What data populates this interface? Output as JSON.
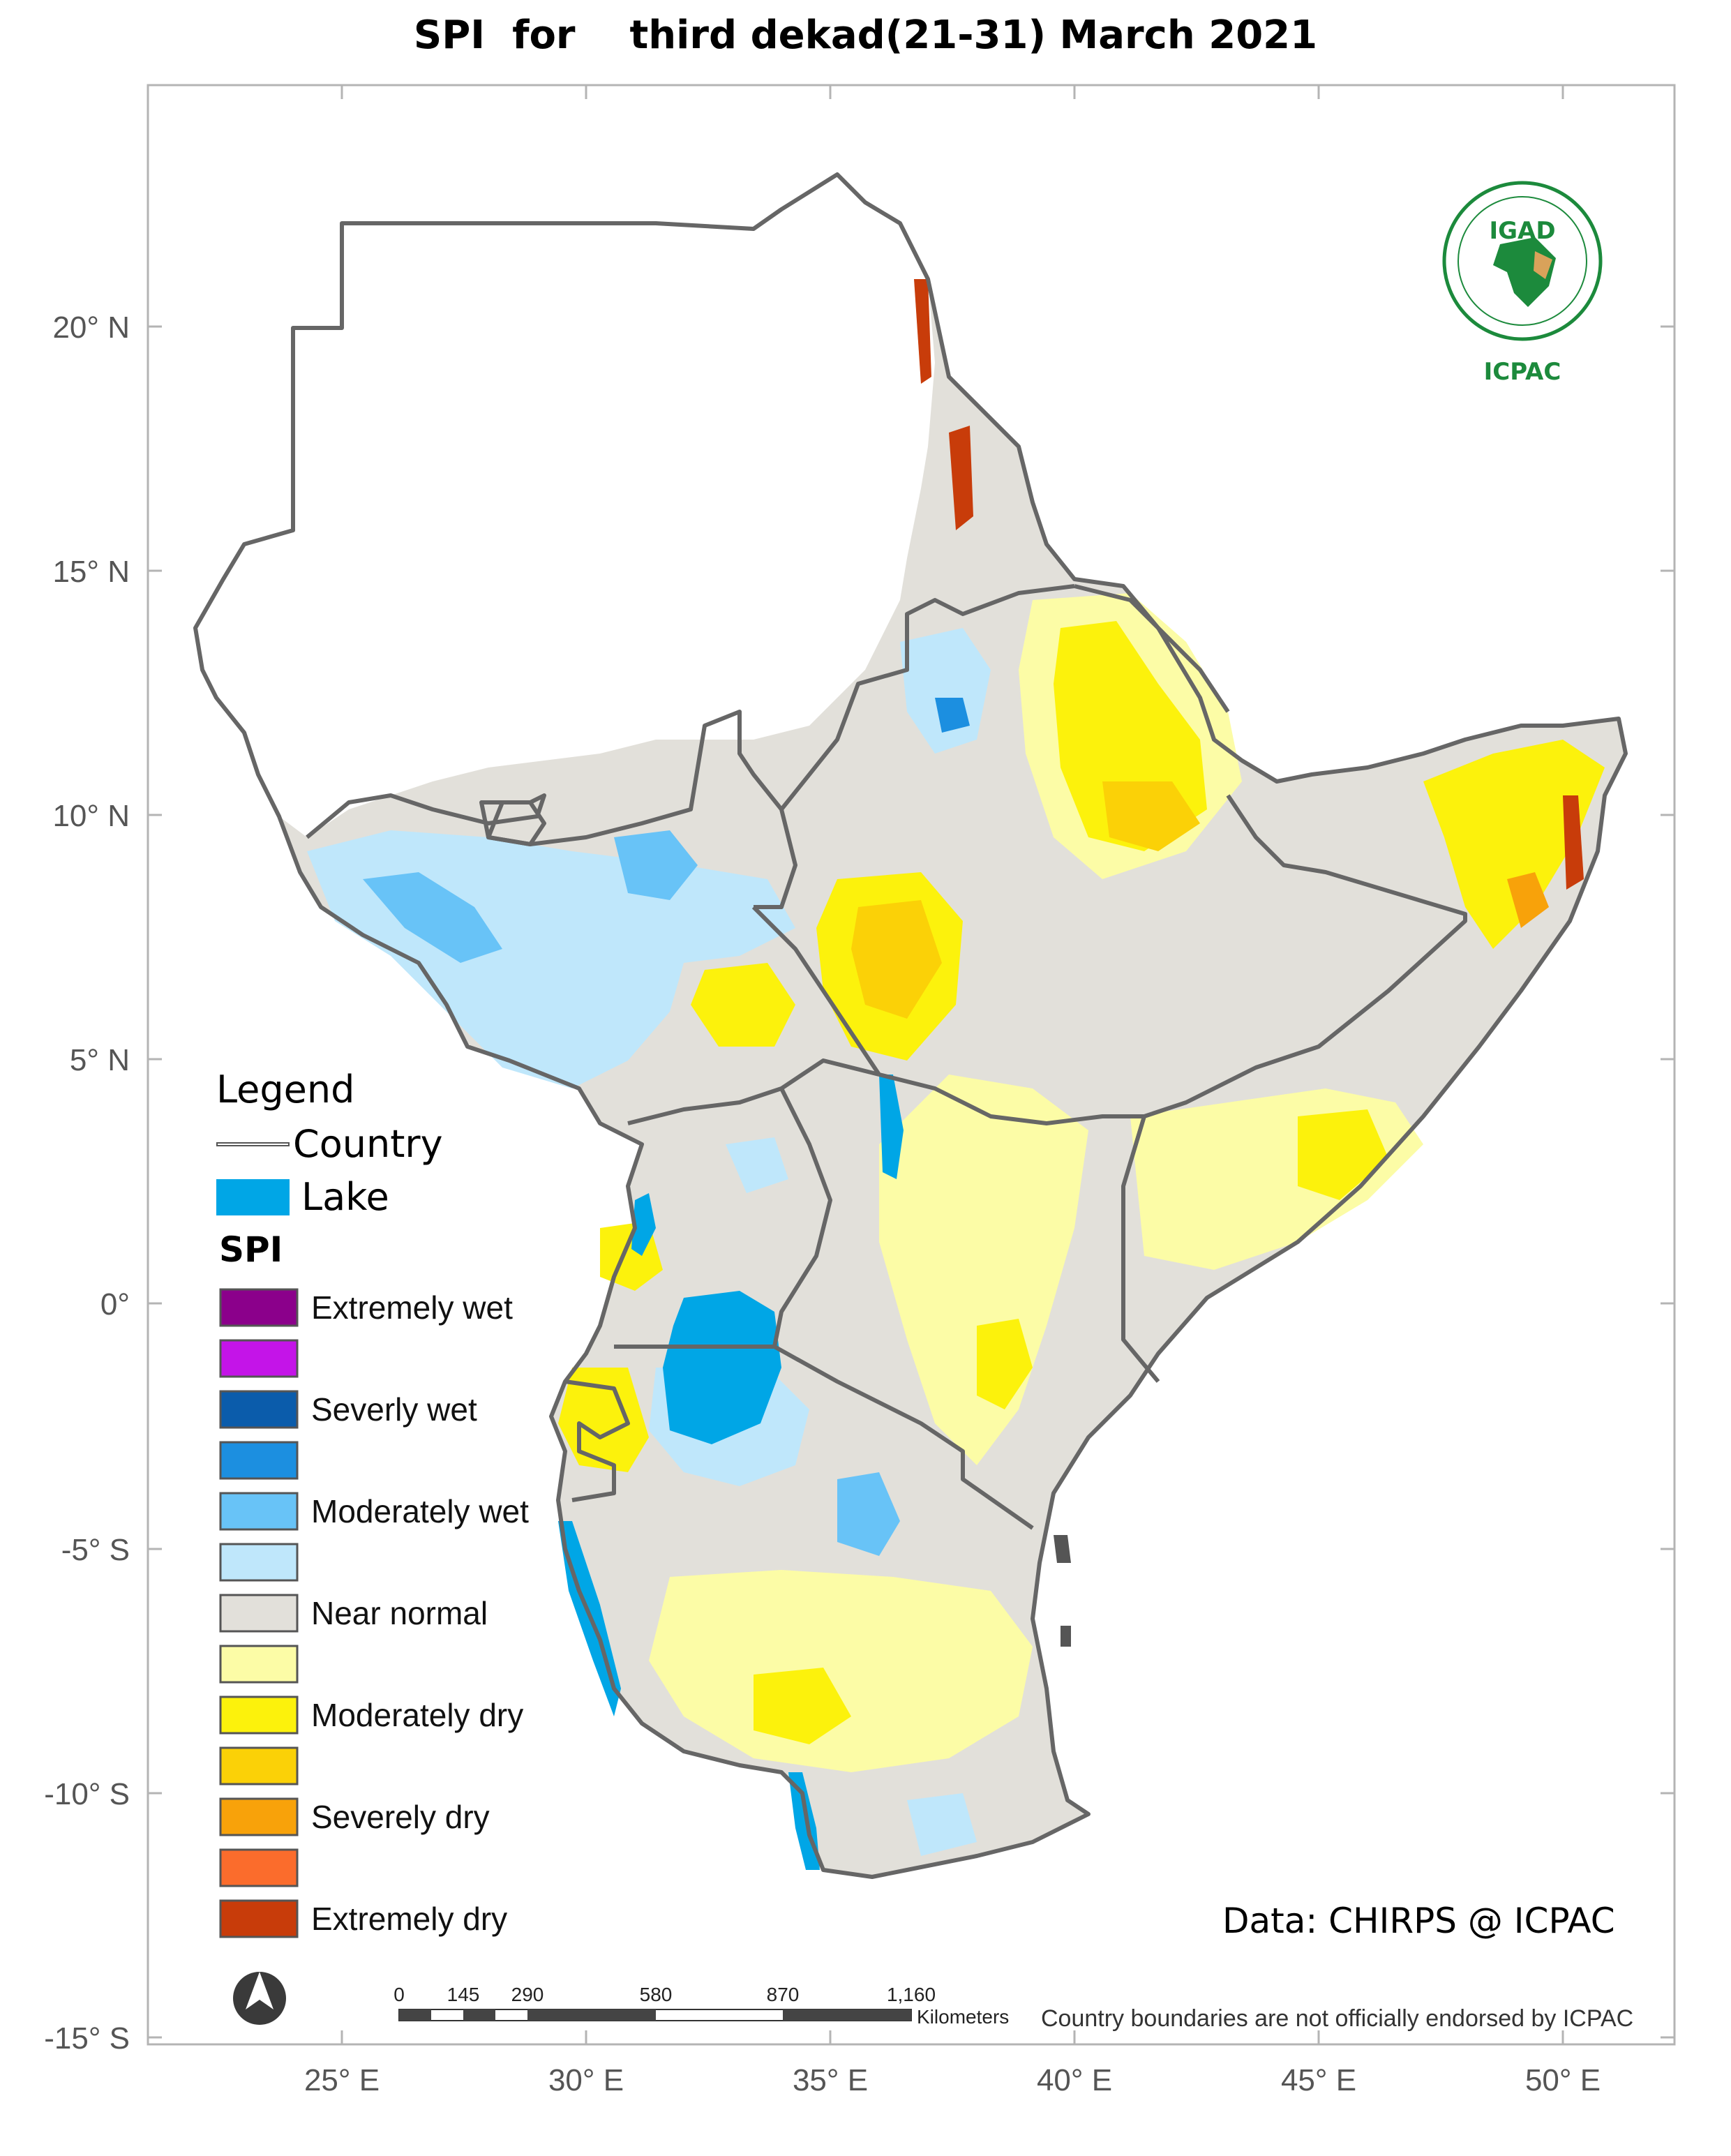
{
  "title": "SPI  for    third dekad(21-31) March 2021",
  "axes": {
    "lat_labels": [
      "20° N",
      "15° N",
      "10° N",
      "5° N",
      "0°",
      "-5° S",
      "-10° S",
      "-15° S"
    ],
    "lon_labels": [
      "25° E",
      "30° E",
      "35° E",
      "40° E",
      "45° E",
      "50° E"
    ]
  },
  "legend": {
    "heading": "Legend",
    "country_label": "Country",
    "lake_label": "Lake",
    "spi_heading": "SPI",
    "lake_color": "#00a6e6",
    "classes": [
      {
        "label": "Extremely wet",
        "color": "#8b008b"
      },
      {
        "label": "",
        "color": "#c414e8"
      },
      {
        "label": "Severly wet",
        "color": "#0b5cab"
      },
      {
        "label": "",
        "color": "#1c8fe0"
      },
      {
        "label": "Moderately wet",
        "color": "#68c3f7"
      },
      {
        "label": "",
        "color": "#bfe7fb"
      },
      {
        "label": "Near normal",
        "color": "#e2e0da"
      },
      {
        "label": "",
        "color": "#fcfca6"
      },
      {
        "label": "Moderately dry",
        "color": "#fcf20c"
      },
      {
        "label": "",
        "color": "#fbd107"
      },
      {
        "label": "Severely dry",
        "color": "#f8a20a"
      },
      {
        "label": "",
        "color": "#fb6c2c"
      },
      {
        "label": "Extremely dry",
        "color": "#c83c0a"
      }
    ]
  },
  "credit": "Data: CHIRPS @ ICPAC",
  "scale_bar": {
    "ticks": [
      "0",
      "145",
      "290",
      "580",
      "870",
      "1,160"
    ],
    "unit": "Kilometers"
  },
  "disclaimer": "Country boundaries are not officially endorsed by ICPAC",
  "logo": {
    "top_text": "IGAD",
    "bottom_text": "ICPAC"
  }
}
